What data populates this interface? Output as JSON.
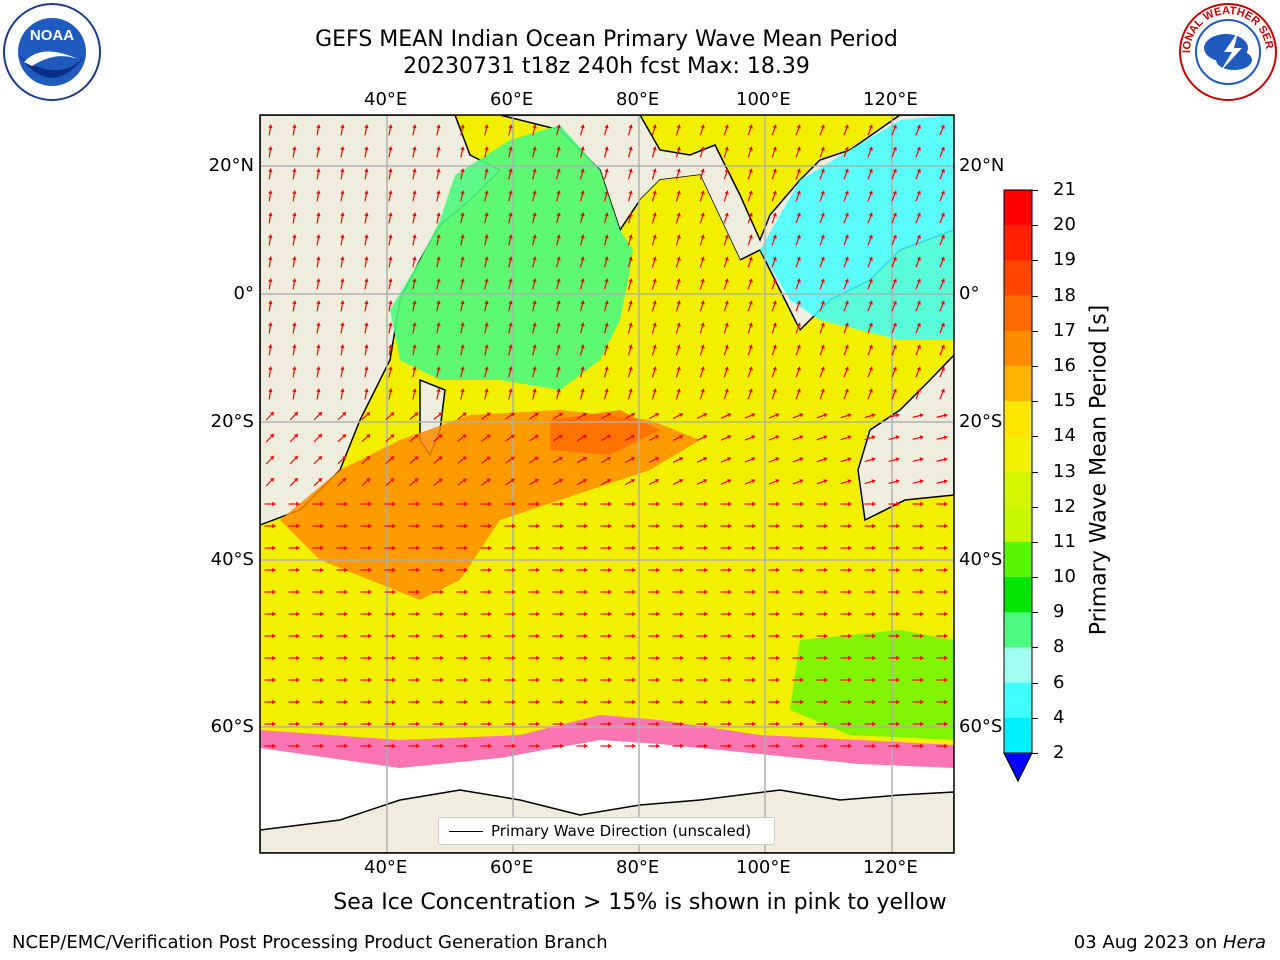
{
  "title": {
    "line1": "GEFS MEAN Indian Ocean Primary Wave Mean Period",
    "line2": "20230731 t18z 240h fcst   Max: 18.39"
  },
  "logos": {
    "noaa": {
      "text": "NOAA",
      "icon": "noaa-logo-icon"
    },
    "nws": {
      "text": "NATIONAL WEATHER SERVICE",
      "icon": "nws-logo-icon"
    }
  },
  "axes": {
    "lon_labels": [
      "40°E",
      "60°E",
      "80°E",
      "100°E",
      "120°E"
    ],
    "lat_labels": [
      "20°N",
      "0°",
      "20°S",
      "40°S",
      "60°S"
    ],
    "lon_values": [
      40,
      60,
      80,
      100,
      120
    ],
    "lat_values": [
      20,
      0,
      -20,
      -40,
      -60
    ]
  },
  "legend": {
    "label": "Primary Wave Direction (unscaled)"
  },
  "colorbar": {
    "label": "Primary Wave Mean Period [s]",
    "ticks": [
      "21",
      "20",
      "19",
      "18",
      "17",
      "16",
      "15",
      "14",
      "13",
      "12",
      "11",
      "10",
      "9",
      "8",
      "6",
      "4",
      "2"
    ],
    "colors": [
      "#ff0000",
      "#ff2000",
      "#ff4500",
      "#ff6a00",
      "#ff8c00",
      "#ffb400",
      "#ffe600",
      "#f0f000",
      "#d4f700",
      "#c8f800",
      "#5af500",
      "#00e600",
      "#4dfa80",
      "#a0fff0",
      "#40ffff",
      "#00f0ff",
      "#0080ff"
    ],
    "extend_color": "#0000ff",
    "extend": "min"
  },
  "caption": "Sea Ice Concentration > 15% is shown in pink to yellow",
  "footer": {
    "left": "NCEP/EMC/Verification Post Processing Product Generation Branch",
    "right_prefix": "03 Aug 2023 on ",
    "right_host": "Hera"
  }
}
